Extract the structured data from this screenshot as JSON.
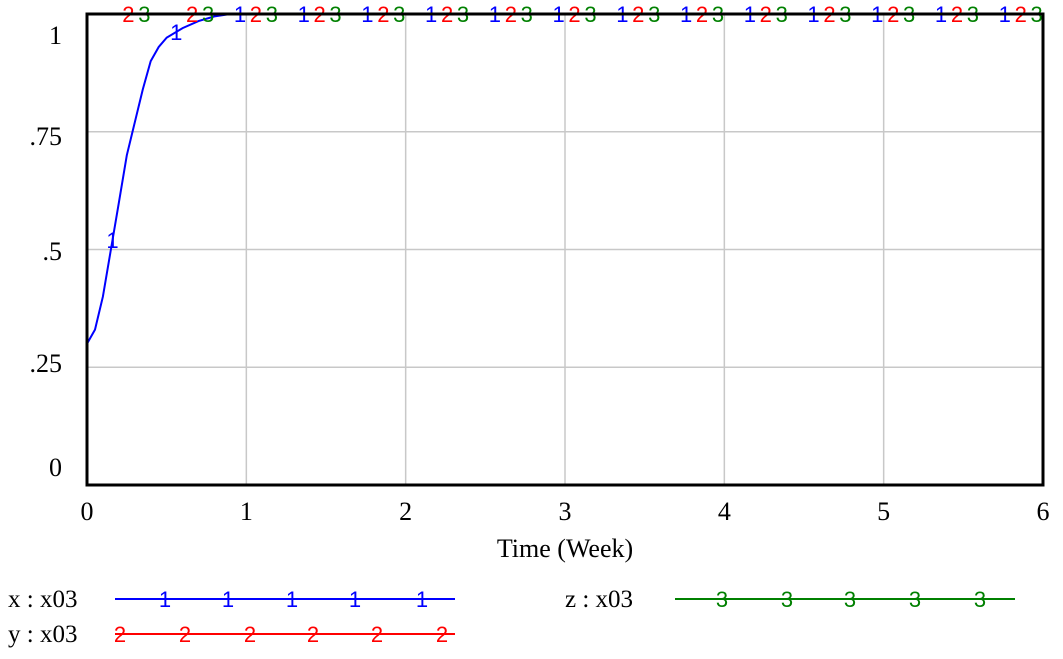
{
  "chart_data": {
    "type": "line",
    "title": "",
    "xlabel": "Time (Week)",
    "ylabel": "",
    "xlim": [
      0,
      6
    ],
    "ylim": [
      0,
      1
    ],
    "grid": true,
    "x_ticks": [
      {
        "value": 0,
        "label": "0"
      },
      {
        "value": 1,
        "label": "1"
      },
      {
        "value": 2,
        "label": "2"
      },
      {
        "value": 3,
        "label": "3"
      },
      {
        "value": 4,
        "label": "4"
      },
      {
        "value": 5,
        "label": "5"
      },
      {
        "value": 6,
        "label": "6"
      }
    ],
    "y_ticks": [
      {
        "value": 0,
        "label": "0"
      },
      {
        "value": 0.25,
        "label": ".25"
      },
      {
        "value": 0.5,
        "label": ".5"
      },
      {
        "value": 0.75,
        "label": ".75"
      },
      {
        "value": 1,
        "label": "1"
      }
    ],
    "legend_position": "bottom",
    "series": [
      {
        "name": "x : x03",
        "marker": "1",
        "color": "#0000ff",
        "x": [
          0,
          0.05,
          0.1,
          0.15,
          0.2,
          0.25,
          0.3,
          0.35,
          0.4,
          0.45,
          0.5,
          0.6,
          0.7,
          0.8,
          0.9,
          1,
          1.5,
          2,
          3,
          4,
          5,
          6
        ],
        "y": [
          0.3,
          0.33,
          0.4,
          0.5,
          0.6,
          0.7,
          0.77,
          0.84,
          0.9,
          0.93,
          0.95,
          0.97,
          0.985,
          0.995,
          1,
          1,
          1,
          1,
          1,
          1,
          1,
          1
        ]
      },
      {
        "name": "y : x03",
        "marker": "2",
        "color": "#ff0000",
        "x": [
          0,
          6
        ],
        "y": [
          1,
          1
        ]
      },
      {
        "name": "z : x03",
        "marker": "3",
        "color": "#008000",
        "x": [
          0,
          6
        ],
        "y": [
          1,
          1
        ]
      }
    ]
  }
}
